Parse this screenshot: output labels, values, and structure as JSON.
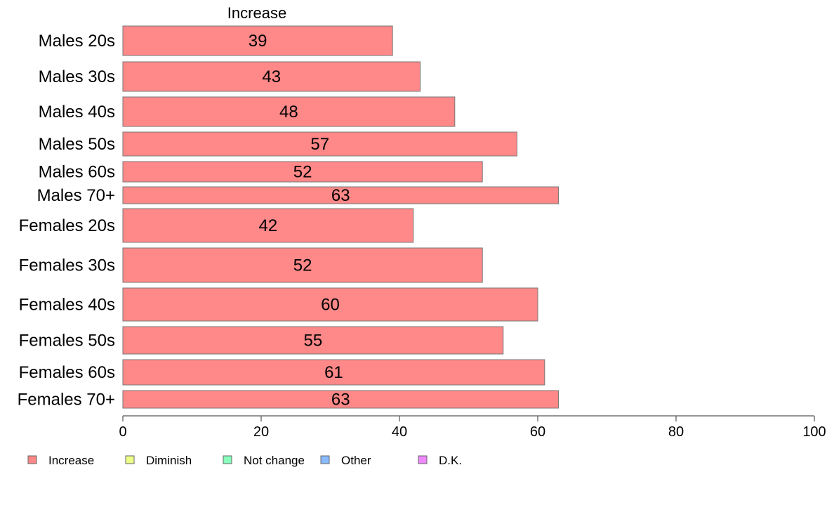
{
  "chart_data": {
    "type": "bar",
    "orientation": "horizontal",
    "stacked": true,
    "header": "Increase",
    "categories": [
      "Males 20s",
      "Males 30s",
      "Males 40s",
      "Males 50s",
      "Males 60s",
      "Males 70+",
      "Females 20s",
      "Females 30s",
      "Females 40s",
      "Females 50s",
      "Females 60s",
      "Females 70+"
    ],
    "series": [
      {
        "name": "Increase",
        "color": "#ff8888",
        "values": [
          39,
          43,
          48,
          57,
          52,
          63,
          42,
          52,
          60,
          55,
          61,
          63
        ]
      }
    ],
    "xlim": [
      0,
      100
    ],
    "xticks": [
      0,
      20,
      40,
      60,
      80,
      100
    ],
    "grid": false,
    "legend": {
      "position": "bottom-left",
      "items": [
        {
          "label": "Increase",
          "color": "#ff8888"
        },
        {
          "label": "Diminish",
          "color": "#eeff88"
        },
        {
          "label": "Not change",
          "color": "#88ffbb"
        },
        {
          "label": "Other",
          "color": "#88bbff"
        },
        {
          "label": "D.K.",
          "color": "#ee88ff"
        }
      ]
    }
  }
}
